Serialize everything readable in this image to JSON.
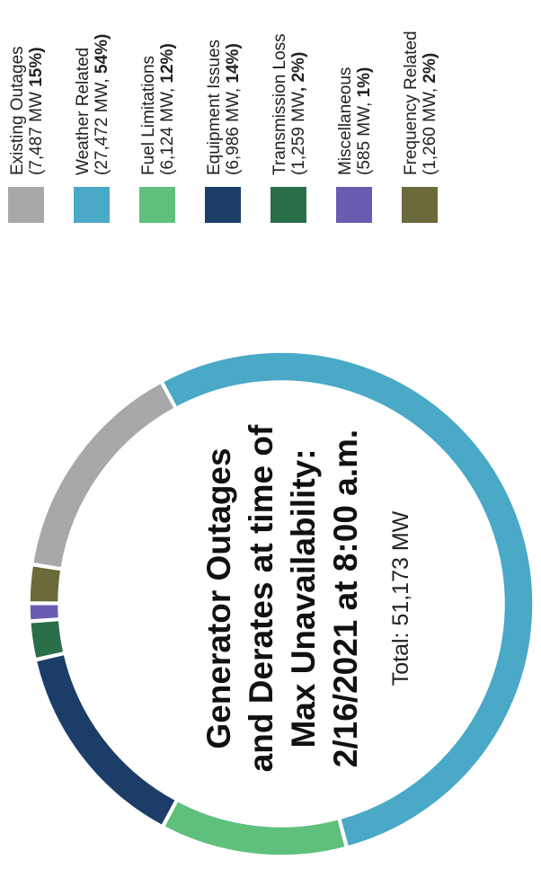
{
  "chart_data": {
    "type": "pie",
    "donut": true,
    "title": "Generator Outages and Derates at time of Max Unavailability: 2/16/2021 at 8:00 a.m.",
    "title_lines": [
      "Generator Outages",
      "and Derates at time of",
      "Max Unavailability:",
      "2/16/2021 at 8:00 a.m."
    ],
    "total_label": "Total: 51,173 MW",
    "total_mw": 51173,
    "legend_placement": "right (rotated page)",
    "slices": [
      {
        "name": "Existing Outages",
        "value_mw": 7487,
        "percent": 15,
        "mw_label": "(7,487 MW  ",
        "pct_label": "15%)",
        "color": "#a6a8aa"
      },
      {
        "name": "Weather Related",
        "value_mw": 27472,
        "percent": 54,
        "mw_label": "(27,472 MW, ",
        "pct_label": "54%)",
        "color": "#49a9c6"
      },
      {
        "name": "Fuel Limitations",
        "value_mw": 6124,
        "percent": 12,
        "mw_label": "(6,124 MW, ",
        "pct_label": "12%)",
        "color": "#5ec07c"
      },
      {
        "name": "Equipment Issues",
        "value_mw": 6986,
        "percent": 14,
        "mw_label": "(6,986 MW, ",
        "pct_label": "14%)",
        "color": "#1b3d68"
      },
      {
        "name": "Transmission Loss",
        "value_mw": 1259,
        "percent": 2,
        "mw_label": "(1,259 MW",
        "pct_label": ", 2%)",
        "color": "#2a6e4a"
      },
      {
        "name": "Miscellaneous",
        "value_mw": 585,
        "percent": 1,
        "mw_label": "(585 MW, ",
        "pct_label": "1%)",
        "color": "#6a5bb0"
      },
      {
        "name": "Frequency Related",
        "value_mw": 1260,
        "percent": 2,
        "mw_label": "(1,260 MW, ",
        "pct_label": "2%)",
        "color": "#6a6a3a"
      }
    ]
  }
}
